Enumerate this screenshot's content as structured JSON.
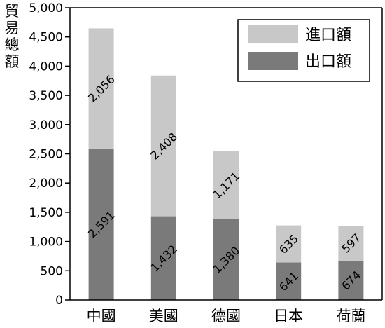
{
  "chart_data": {
    "type": "bar",
    "stacked": true,
    "title": "",
    "ylabel": "貿易總額",
    "xlabel": "",
    "categories": [
      "中國",
      "美國",
      "德國",
      "日本",
      "荷蘭"
    ],
    "series": [
      {
        "name": "出口額",
        "values": [
          2591,
          1432,
          1380,
          641,
          674
        ],
        "labels": [
          "2,591",
          "1,432",
          "1,380",
          "641",
          "674"
        ],
        "color": "#7a7a7a"
      },
      {
        "name": "進口額",
        "values": [
          2056,
          2408,
          1171,
          635,
          597
        ],
        "labels": [
          "2,056",
          "2,408",
          "1,171",
          "635",
          "597"
        ],
        "color": "#c8c8c8"
      }
    ],
    "ylim": [
      0,
      5000
    ],
    "yticks": [
      0,
      500,
      1000,
      1500,
      2000,
      2500,
      3000,
      3500,
      4000,
      4500,
      5000
    ],
    "ytick_labels": [
      "0",
      "500",
      "1,000",
      "1,500",
      "2,000",
      "2,500",
      "3,000",
      "3,500",
      "4,000",
      "4,500",
      "5,000"
    ],
    "legend": {
      "position": "top-right",
      "order": [
        "進口額",
        "出口額"
      ]
    },
    "grid": false
  }
}
